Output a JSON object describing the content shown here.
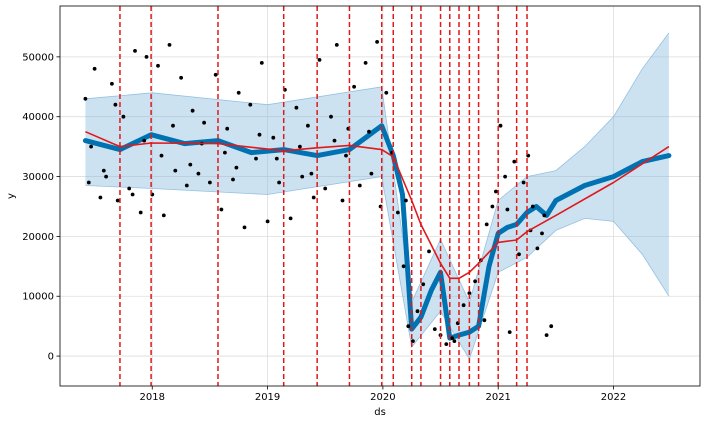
{
  "chart_data": {
    "type": "line",
    "title": "",
    "xlabel": "ds",
    "ylabel": "y",
    "xlim": [
      2017.2,
      2022.75
    ],
    "ylim": [
      -5000,
      58500
    ],
    "x_ticks": [
      {
        "value": 2018,
        "label": "2018"
      },
      {
        "value": 2019,
        "label": "2019"
      },
      {
        "value": 2020,
        "label": "2020"
      },
      {
        "value": 2021,
        "label": "2021"
      },
      {
        "value": 2022,
        "label": "2022"
      }
    ],
    "y_ticks": [
      {
        "value": 0,
        "label": "0"
      },
      {
        "value": 10000,
        "label": "10000"
      },
      {
        "value": 20000,
        "label": "20000"
      },
      {
        "value": 30000,
        "label": "30000"
      },
      {
        "value": 40000,
        "label": "40000"
      },
      {
        "value": 50000,
        "label": "50000"
      }
    ],
    "grid": true,
    "colors": {
      "forecast": "#0072b2",
      "uncertainty": "#7fb6dc",
      "observed": "#000000",
      "trend": "#e0191b",
      "changepoint": "#e0191b",
      "grid": "#dddddd",
      "frame": "#000000"
    },
    "changepoints": [
      2017.72,
      2017.99,
      2018.57,
      2019.14,
      2019.43,
      2019.71,
      2019.99,
      2020.09,
      2020.25,
      2020.33,
      2020.5,
      2020.58,
      2020.66,
      2020.75,
      2020.83,
      2021.0,
      2021.16,
      2021.25
    ],
    "series": [
      {
        "name": "trend",
        "x": [
          2017.42,
          2017.72,
          2017.99,
          2018.57,
          2019.14,
          2019.43,
          2019.71,
          2019.99,
          2020.09,
          2020.25,
          2020.33,
          2020.5,
          2020.58,
          2020.66,
          2020.75,
          2020.83,
          2021.0,
          2021.16,
          2021.25,
          2021.5,
          2022.0,
          2022.48
        ],
        "values": [
          37500,
          35000,
          35600,
          35500,
          34300,
          34800,
          35200,
          34500,
          33300,
          26000,
          22000,
          15500,
          13000,
          13000,
          14000,
          15500,
          19000,
          19400,
          20800,
          23500,
          29000,
          35000
        ]
      },
      {
        "name": "forecast (yhat)",
        "x": [
          2017.42,
          2017.72,
          2017.99,
          2018.28,
          2018.57,
          2018.86,
          2019.14,
          2019.43,
          2019.71,
          2019.85,
          2019.99,
          2020.09,
          2020.17,
          2020.25,
          2020.33,
          2020.42,
          2020.5,
          2020.58,
          2020.66,
          2020.75,
          2020.83,
          2020.92,
          2021.0,
          2021.08,
          2021.16,
          2021.25,
          2021.33,
          2021.42,
          2021.5,
          2021.75,
          2022.0,
          2022.25,
          2022.48
        ],
        "values": [
          36000,
          34500,
          37000,
          35500,
          36000,
          34000,
          34500,
          33500,
          34500,
          36500,
          38500,
          33500,
          27000,
          4500,
          6500,
          11000,
          14000,
          3000,
          3500,
          4000,
          5000,
          15000,
          20500,
          21500,
          22000,
          24000,
          25000,
          23500,
          26000,
          28500,
          30000,
          32500,
          33500
        ]
      },
      {
        "name": "forecast upper bound",
        "x": [
          2017.42,
          2018.0,
          2019.0,
          2019.99,
          2020.25,
          2020.5,
          2020.75,
          2021.0,
          2021.25,
          2021.5,
          2021.75,
          2022.0,
          2022.25,
          2022.48
        ],
        "values": [
          43000,
          44000,
          42000,
          45000,
          9000,
          19500,
          9000,
          26000,
          30000,
          31000,
          35000,
          40000,
          48000,
          54000
        ]
      },
      {
        "name": "forecast lower bound",
        "x": [
          2017.42,
          2018.0,
          2019.0,
          2019.99,
          2020.25,
          2020.5,
          2020.75,
          2021.0,
          2021.25,
          2021.5,
          2021.75,
          2022.0,
          2022.25,
          2022.48
        ],
        "values": [
          28500,
          28000,
          27000,
          30000,
          1500,
          7500,
          -500,
          14000,
          16500,
          21000,
          23000,
          22500,
          17000,
          10000
        ]
      },
      {
        "name": "observed (y)",
        "type": "scatter",
        "x": [
          2017.42,
          2017.45,
          2017.5,
          2017.55,
          2017.6,
          2017.65,
          2017.7,
          2017.75,
          2017.8,
          2017.85,
          2017.9,
          2017.95,
          2018.0,
          2018.05,
          2018.1,
          2018.15,
          2018.2,
          2018.25,
          2018.3,
          2018.35,
          2018.4,
          2018.45,
          2018.5,
          2018.55,
          2018.6,
          2018.65,
          2018.7,
          2018.75,
          2018.8,
          2018.85,
          2018.9,
          2018.95,
          2019.0,
          2019.05,
          2019.1,
          2019.15,
          2019.2,
          2019.25,
          2019.3,
          2019.35,
          2019.4,
          2019.45,
          2019.5,
          2019.55,
          2019.6,
          2019.65,
          2019.7,
          2019.75,
          2019.8,
          2019.85,
          2019.9,
          2019.95,
          2019.98,
          2020.03,
          2020.08,
          2020.13,
          2020.18,
          2020.22,
          2020.26,
          2020.3,
          2020.35,
          2020.4,
          2020.45,
          2020.5,
          2020.55,
          2020.6,
          2020.65,
          2020.7,
          2020.75,
          2020.8,
          2020.85,
          2020.9,
          2020.95,
          2020.98,
          2021.02,
          2021.06,
          2021.1,
          2021.14,
          2021.18,
          2021.22,
          2021.26,
          2021.3,
          2021.34,
          2021.38,
          2021.42,
          2021.46,
          2017.47,
          2017.58,
          2017.68,
          2017.83,
          2017.93,
          2018.08,
          2018.18,
          2018.33,
          2018.43,
          2018.63,
          2018.73,
          2018.93,
          2019.08,
          2019.28,
          2019.38,
          2019.58,
          2019.68,
          2019.88,
          2020.2,
          2020.62,
          2020.88,
          2021.08,
          2021.28,
          2021.4
        ],
        "values": [
          43000,
          29000,
          48000,
          26500,
          30000,
          45500,
          26000,
          40000,
          28000,
          51000,
          24000,
          50000,
          27000,
          48500,
          23500,
          52000,
          31000,
          46500,
          28500,
          41000,
          30500,
          39000,
          29000,
          47000,
          24500,
          38000,
          29500,
          44000,
          21500,
          42000,
          33000,
          49000,
          22500,
          36500,
          29000,
          44500,
          23000,
          41500,
          30000,
          38500,
          26500,
          49500,
          28000,
          40000,
          52000,
          26000,
          38000,
          45000,
          28500,
          49000,
          30500,
          52500,
          25000,
          44000,
          34000,
          24000,
          15000,
          5000,
          2500,
          7500,
          12000,
          17500,
          4500,
          3500,
          2000,
          3000,
          5500,
          8500,
          10500,
          12500,
          16000,
          22000,
          25000,
          27500,
          38500,
          30000,
          4000,
          32500,
          17000,
          29000,
          33500,
          25000,
          18000,
          20500,
          3500,
          5000,
          35000,
          31000,
          42000,
          27000,
          36000,
          33500,
          38500,
          32000,
          35500,
          34000,
          31500,
          37000,
          33000,
          35000,
          30500,
          36000,
          33500,
          37500,
          26000,
          2500,
          6000,
          24500,
          21000,
          23500
        ]
      }
    ]
  }
}
